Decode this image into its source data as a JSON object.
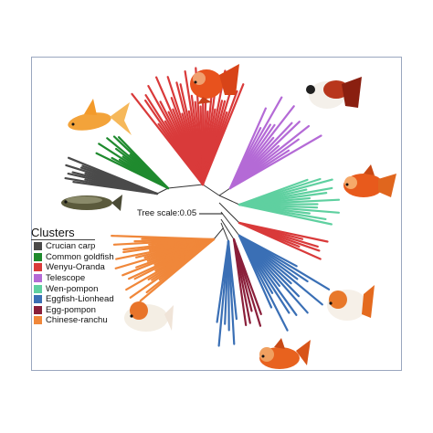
{
  "figure": {
    "scale_label": "Tree scale:0.05",
    "legend_title": "Clusters",
    "clusters": [
      {
        "label": "Crucian carp",
        "color": "#4a4a4a"
      },
      {
        "label": "Common goldfish",
        "color": "#1f8a2e"
      },
      {
        "label": "Wenyu-Oranda",
        "color": "#d93a3a"
      },
      {
        "label": "Telescope",
        "color": "#b46ad6"
      },
      {
        "label": "Wen-pompon",
        "color": "#5fd0a0"
      },
      {
        "label": "Eggfish-Lionhead",
        "color": "#3a6fb5"
      },
      {
        "label": "Egg-pompon",
        "color": "#8a1f3a"
      },
      {
        "label": "Chinese-ranchu",
        "color": "#f0873a"
      }
    ],
    "fish_photos": [
      {
        "name": "crucian-carp-photo"
      },
      {
        "name": "common-goldfish-photo"
      },
      {
        "name": "oranda-photo"
      },
      {
        "name": "telescope-photo"
      },
      {
        "name": "wen-pompon-photo"
      },
      {
        "name": "lionhead-photo"
      },
      {
        "name": "egg-pompon-photo"
      },
      {
        "name": "ranchu-photo"
      }
    ]
  }
}
